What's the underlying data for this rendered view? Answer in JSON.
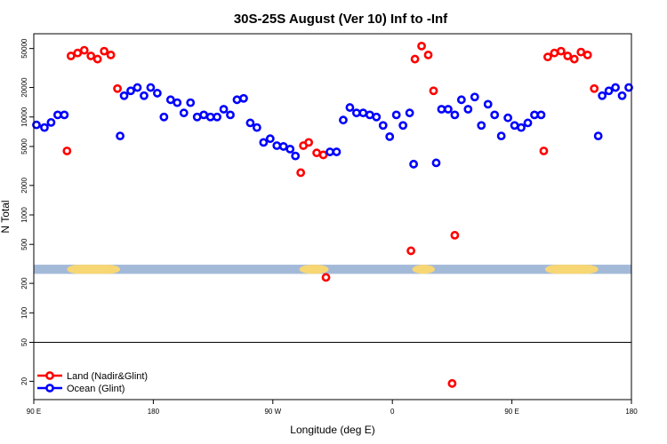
{
  "chart_data": {
    "type": "scatter",
    "title": "30S-25S August (Ver 10)   Inf to -Inf",
    "xlabel": "Longitude (deg E)",
    "ylabel": "N Total",
    "yscale": "log",
    "ylim": [
      13,
      70000
    ],
    "xlim": [
      0,
      450
    ],
    "x_ticks": [
      {
        "value": 0,
        "label": "90 E"
      },
      {
        "value": 90,
        "label": "180"
      },
      {
        "value": 180,
        "label": "90 W"
      },
      {
        "value": 270,
        "label": "0"
      },
      {
        "value": 360,
        "label": "90 E"
      },
      {
        "value": 450,
        "label": "180"
      }
    ],
    "y_ticks": [
      {
        "value": 20,
        "label": "20"
      },
      {
        "value": 50,
        "label": "50"
      },
      {
        "value": 100,
        "label": "100"
      },
      {
        "value": 200,
        "label": "200"
      },
      {
        "value": 500,
        "label": "500"
      },
      {
        "value": 1000,
        "label": "1000"
      },
      {
        "value": 2000,
        "label": "2000"
      },
      {
        "value": 5000,
        "label": "5000"
      },
      {
        "value": 10000,
        "label": "10000"
      },
      {
        "value": 20000,
        "label": "20000"
      },
      {
        "value": 50000,
        "label": "50000"
      }
    ],
    "reference_line": 50,
    "band": {
      "y_range": [
        250,
        310
      ],
      "ocean_color": "#a3b9d8",
      "land_color": "#f7d674",
      "land_spans": [
        [
          25,
          65
        ],
        [
          200,
          222
        ],
        [
          285,
          302
        ],
        [
          385,
          425
        ]
      ]
    },
    "legend_position": "bottom-left",
    "series": [
      {
        "name": "Land (Nadir&Glint)",
        "color": "#ff0000",
        "points": [
          [
            25,
            4500
          ],
          [
            28,
            42000
          ],
          [
            33,
            45000
          ],
          [
            38,
            48000
          ],
          [
            43,
            42000
          ],
          [
            48,
            39000
          ],
          [
            53,
            47000
          ],
          [
            58,
            43000
          ],
          [
            63,
            19500
          ],
          [
            201,
            2700
          ],
          [
            203,
            5100
          ],
          [
            207,
            5500
          ],
          [
            213,
            4300
          ],
          [
            218,
            4100
          ],
          [
            220,
            230
          ],
          [
            284,
            430
          ],
          [
            287,
            39000
          ],
          [
            292,
            53000
          ],
          [
            297,
            43000
          ],
          [
            301,
            18500
          ],
          [
            315,
            19
          ],
          [
            317,
            620
          ],
          [
            384,
            4500
          ],
          [
            387,
            41000
          ],
          [
            392,
            45000
          ],
          [
            397,
            47000
          ],
          [
            402,
            42000
          ],
          [
            407,
            39000
          ],
          [
            412,
            46000
          ],
          [
            417,
            43000
          ],
          [
            422,
            19500
          ]
        ]
      },
      {
        "name": "Ocean (Glint)",
        "color": "#0000ff",
        "points": [
          [
            2,
            8300
          ],
          [
            8,
            7800
          ],
          [
            13,
            8800
          ],
          [
            18,
            10500
          ],
          [
            23,
            10500
          ],
          [
            65,
            6400
          ],
          [
            68,
            16500
          ],
          [
            73,
            18500
          ],
          [
            78,
            20000
          ],
          [
            83,
            16500
          ],
          [
            88,
            20000
          ],
          [
            93,
            17500
          ],
          [
            98,
            10000
          ],
          [
            103,
            15000
          ],
          [
            108,
            14000
          ],
          [
            113,
            11000
          ],
          [
            118,
            14000
          ],
          [
            123,
            10000
          ],
          [
            128,
            10500
          ],
          [
            133,
            10000
          ],
          [
            138,
            10000
          ],
          [
            143,
            12000
          ],
          [
            148,
            10500
          ],
          [
            153,
            15000
          ],
          [
            158,
            15500
          ],
          [
            163,
            8700
          ],
          [
            168,
            7800
          ],
          [
            173,
            5500
          ],
          [
            178,
            6000
          ],
          [
            183,
            5100
          ],
          [
            188,
            5000
          ],
          [
            193,
            4700
          ],
          [
            197,
            4000
          ],
          [
            223,
            4400
          ],
          [
            228,
            4400
          ],
          [
            233,
            9300
          ],
          [
            238,
            12500
          ],
          [
            243,
            11000
          ],
          [
            248,
            11000
          ],
          [
            253,
            10500
          ],
          [
            258,
            10000
          ],
          [
            263,
            8200
          ],
          [
            268,
            6300
          ],
          [
            273,
            10500
          ],
          [
            278,
            8200
          ],
          [
            283,
            11000
          ],
          [
            286,
            3300
          ],
          [
            303,
            3400
          ],
          [
            307,
            12000
          ],
          [
            312,
            12000
          ],
          [
            317,
            10500
          ],
          [
            322,
            15000
          ],
          [
            327,
            12000
          ],
          [
            332,
            16000
          ],
          [
            337,
            8200
          ],
          [
            342,
            13500
          ],
          [
            347,
            10500
          ],
          [
            352,
            6400
          ],
          [
            357,
            9800
          ],
          [
            362,
            8200
          ],
          [
            367,
            7800
          ],
          [
            372,
            8700
          ],
          [
            377,
            10500
          ],
          [
            382,
            10500
          ],
          [
            425,
            6400
          ],
          [
            428,
            16500
          ],
          [
            433,
            18500
          ],
          [
            438,
            20000
          ],
          [
            443,
            16500
          ],
          [
            448,
            20000
          ]
        ]
      }
    ]
  }
}
